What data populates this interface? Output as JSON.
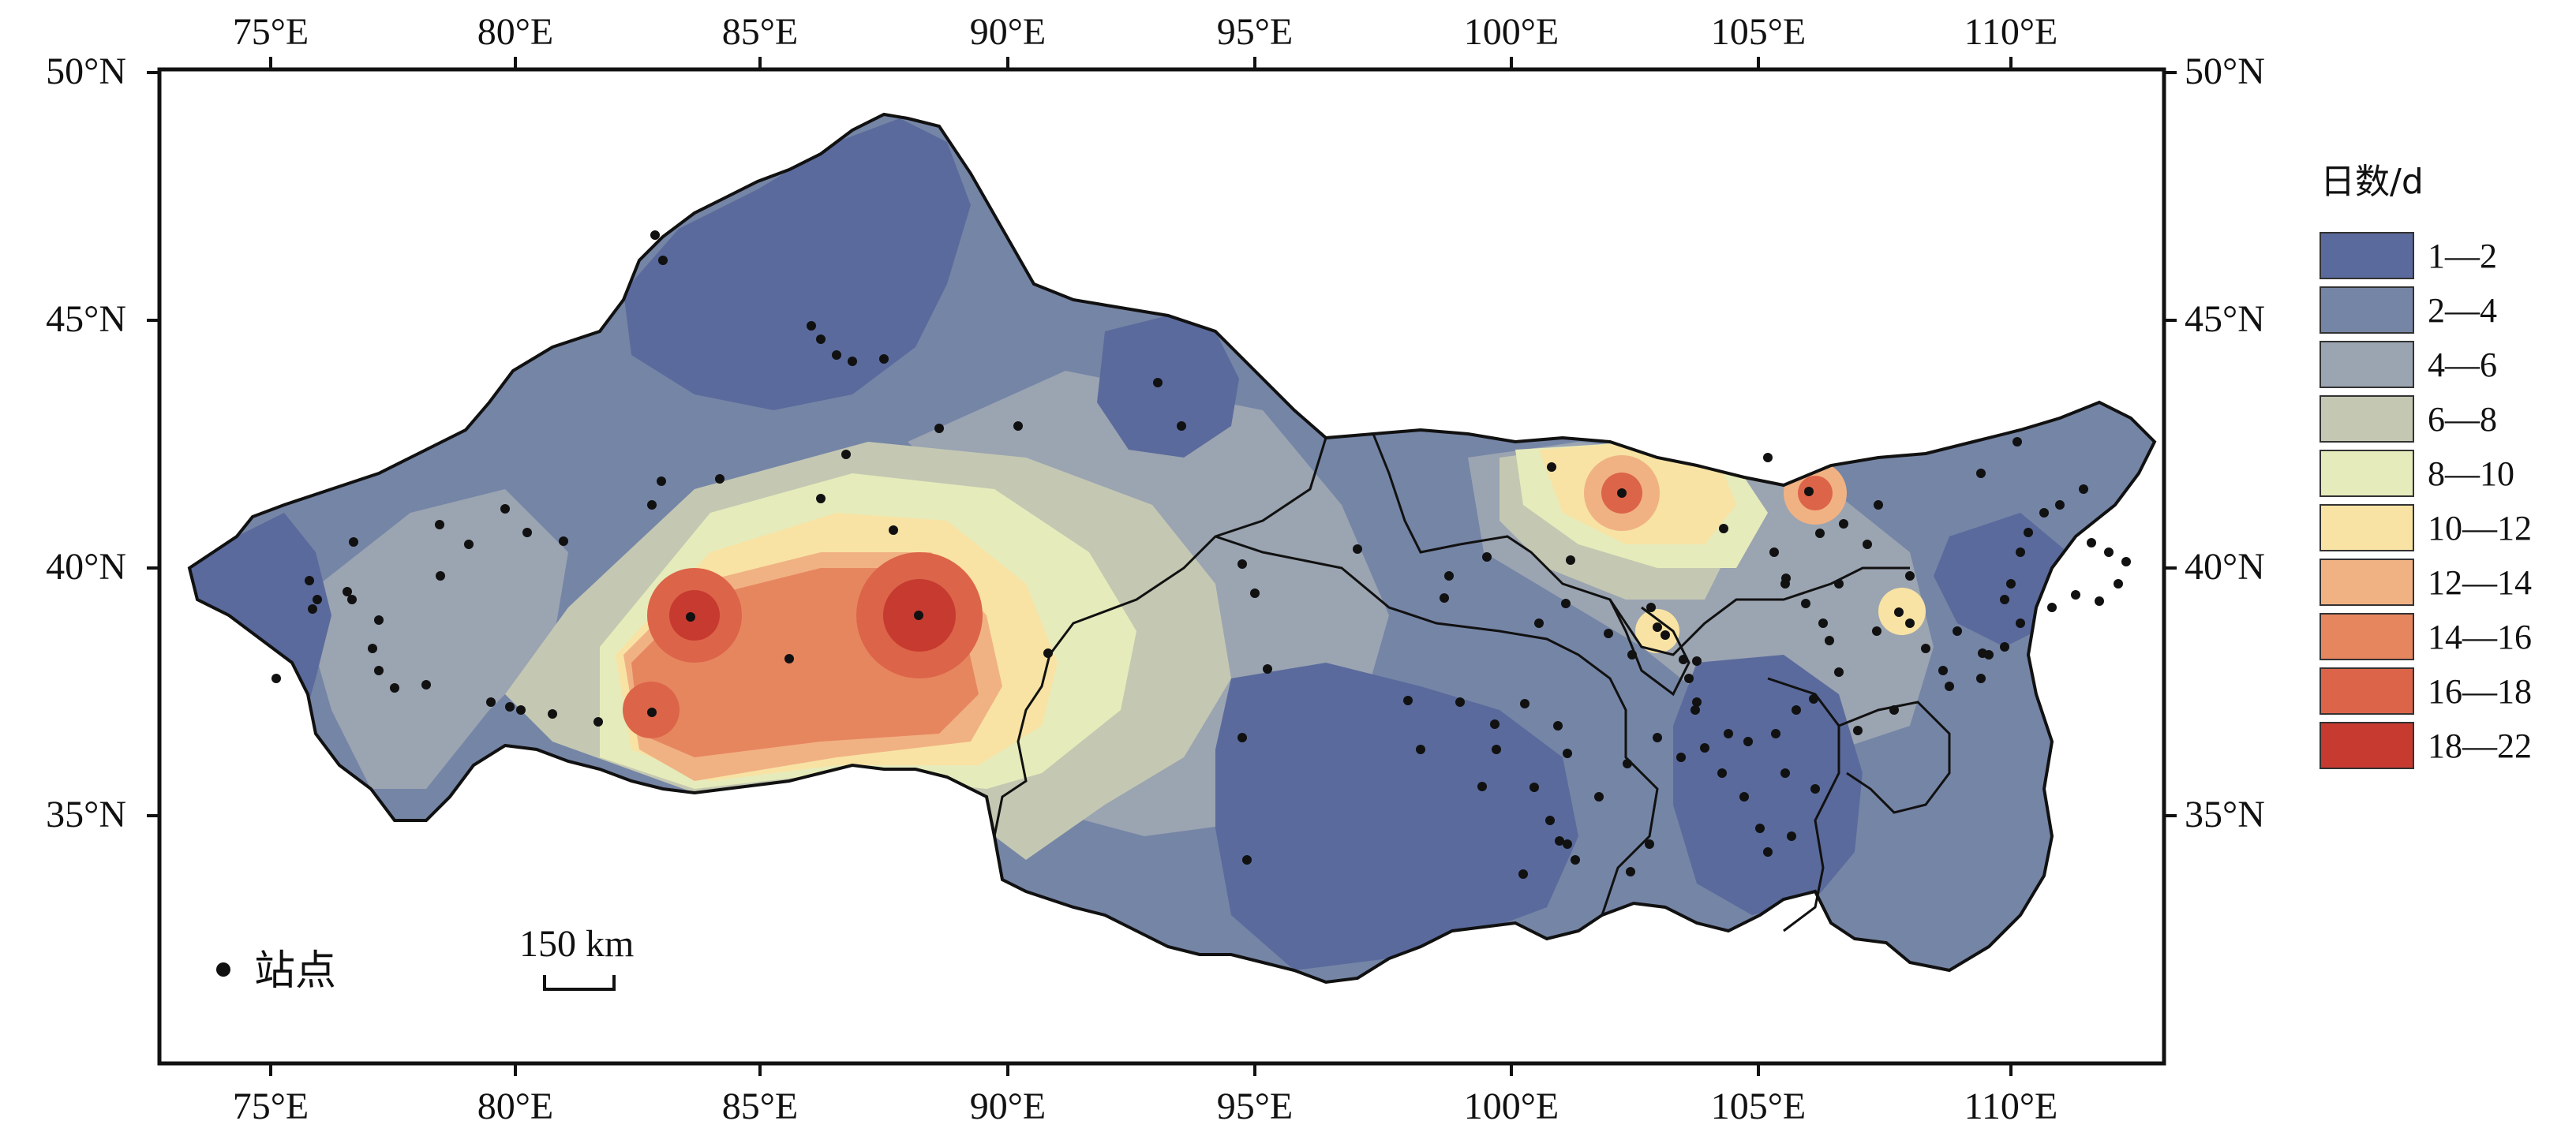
{
  "axes": {
    "lon_labels": [
      "75°E",
      "80°E",
      "85°E",
      "90°E",
      "95°E",
      "100°E",
      "105°E",
      "110°E"
    ],
    "lat_labels": [
      "50°N",
      "45°N",
      "40°N",
      "35°N"
    ]
  },
  "legend": {
    "title": "日数/d",
    "classes": [
      {
        "label": "1—2",
        "color": "#5a6a9c"
      },
      {
        "label": "2—4",
        "color": "#7585a6"
      },
      {
        "label": "4—6",
        "color": "#9ba4b1"
      },
      {
        "label": "6—8",
        "color": "#c4c8b2"
      },
      {
        "label": "8—10",
        "color": "#e6ebbb"
      },
      {
        "label": "10—12",
        "color": "#f8e3a4"
      },
      {
        "label": "12—14",
        "color": "#f1b283"
      },
      {
        "label": "14—16",
        "color": "#e6865f"
      },
      {
        "label": "16—18",
        "color": "#dc6449"
      },
      {
        "label": "18—22",
        "color": "#c63a30"
      }
    ]
  },
  "station_legend": {
    "label": "站点"
  },
  "scale_bar": {
    "label": "150 km"
  },
  "colors": {
    "station": "#111111",
    "border": "#111111"
  }
}
